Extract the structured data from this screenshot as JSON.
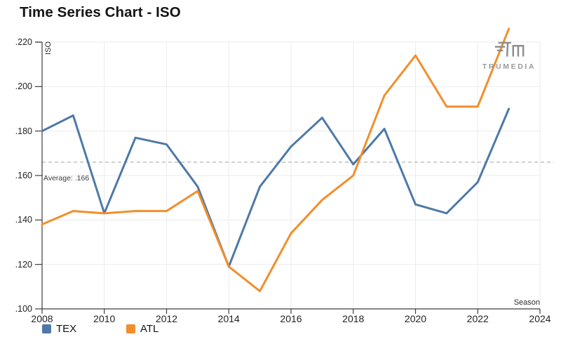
{
  "title": "Time Series Chart - ISO",
  "logo": {
    "brand": "TRUMEDIA"
  },
  "chart_data": {
    "type": "line",
    "title": "Time Series Chart - ISO",
    "xlabel": "Season",
    "ylabel": "ISO",
    "x": [
      2008,
      2009,
      2010,
      2011,
      2012,
      2013,
      2014,
      2015,
      2016,
      2017,
      2018,
      2019,
      2020,
      2021,
      2022,
      2023
    ],
    "series": [
      {
        "name": "TEX",
        "color": "#4e79a7",
        "values": [
          0.18,
          0.187,
          0.143,
          0.177,
          0.174,
          0.155,
          0.119,
          0.155,
          0.173,
          0.186,
          0.165,
          0.181,
          0.147,
          0.143,
          0.157,
          0.19
        ]
      },
      {
        "name": "ATL",
        "color": "#f28e2b",
        "values": [
          0.138,
          0.144,
          0.143,
          0.144,
          0.144,
          0.153,
          0.119,
          0.108,
          0.134,
          0.149,
          0.16,
          0.196,
          0.214,
          0.191,
          0.191,
          0.226
        ]
      }
    ],
    "average": {
      "value": 0.166,
      "label": "Average: .166"
    },
    "xlim": [
      2008,
      2024
    ],
    "ylim": [
      0.1,
      0.22
    ],
    "x_ticks": [
      2008,
      2010,
      2012,
      2014,
      2016,
      2018,
      2020,
      2022,
      2024
    ],
    "y_ticks": [
      0.1,
      0.12,
      0.14,
      0.16,
      0.18,
      0.2,
      0.22
    ],
    "y_tick_labels": [
      ".100",
      ".120",
      ".140",
      ".160",
      ".180",
      ".200",
      ".220"
    ],
    "grid": true,
    "legend_position": "bottom-left",
    "colors": {
      "axis": "#3c3c3c",
      "grid": "#ebebeb",
      "average_line": "#b4b4b4"
    }
  },
  "legend": [
    {
      "label": "TEX",
      "color": "#4e79a7"
    },
    {
      "label": "ATL",
      "color": "#f28e2b"
    }
  ]
}
